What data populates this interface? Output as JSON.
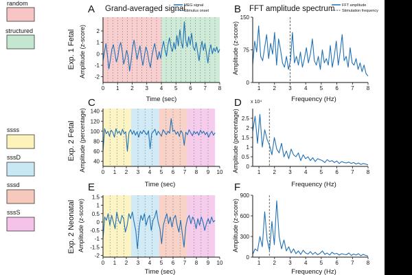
{
  "legend": {
    "items": [
      {
        "name": "random",
        "color": "#f7c5c6"
      },
      {
        "name": "structured",
        "color": "#c4e8cf"
      },
      {
        "name": "ssss",
        "color": "#fbf3b9"
      },
      {
        "name": "sssD",
        "color": "#c9e8f5"
      },
      {
        "name": "sssd",
        "color": "#f7c9bd"
      },
      {
        "name": "sssS",
        "color": "#f5c3ea"
      }
    ]
  },
  "column_titles": {
    "left": "Grand-averaged signal",
    "right": "FFT amplitude spectrum"
  },
  "line_color": "#1f6fb5",
  "chart_data": [
    {
      "panel": "A",
      "row_label": "Exp. 1 Fetal",
      "type": "line",
      "xlabel": "Time (sec)",
      "ylabel": "Amplitude (z-score)",
      "xlim": [
        0,
        8
      ],
      "ylim": [
        -2.5,
        3.2
      ],
      "x_ticks": [
        0,
        1,
        2,
        3,
        4,
        5,
        6,
        7,
        8
      ],
      "y_ticks": [
        -2,
        -1,
        0,
        1,
        2
      ],
      "y_tick_labels": [
        "-2",
        "-1",
        "0",
        "1",
        "2"
      ],
      "bands": [
        {
          "from": 0,
          "to": 4,
          "condition": "random"
        },
        {
          "from": 4,
          "to": 8,
          "condition": "structured"
        }
      ],
      "stimulus_onsets": [
        0.33,
        0.67,
        1.0,
        1.33,
        1.67,
        2.0,
        2.33,
        2.67,
        3.0,
        3.33,
        3.67,
        4.0,
        4.33,
        4.67,
        5.0,
        5.33,
        5.67,
        6.0,
        6.33,
        6.67,
        7.0,
        7.33,
        7.67
      ],
      "legend_entries": [
        "MEG signal",
        "Stimulus onset"
      ],
      "series": [
        {
          "name": "MEG signal",
          "x_range": [
            0,
            8
          ],
          "values": [
            -0.6,
            0.2,
            0.9,
            -0.2,
            -1.3,
            -0.5,
            0.4,
            0.8,
            0.1,
            -0.7,
            -0.3,
            0.6,
            1.0,
            0.2,
            -0.9,
            -0.4,
            0.3,
            -0.2,
            -1.5,
            -0.6,
            0.5,
            1.2,
            0.4,
            -0.5,
            0.1,
            0.7,
            -0.3,
            -1.0,
            -0.2,
            0.6,
            0.2,
            -0.6,
            -1.2,
            -0.3,
            0.4,
            0.9,
            0.1,
            -0.5,
            0.2,
            -0.4,
            0.5,
            1.1,
            0.3,
            -0.2,
            0.8,
            1.4,
            0.6,
            0.2,
            1.0,
            0.4,
            1.6,
            0.7,
            2.1,
            1.0,
            0.5,
            2.8,
            1.2,
            0.6,
            1.5,
            0.8,
            1.8,
            0.6,
            0.3,
            1.0,
            0.2,
            -0.6,
            0.4,
            1.1,
            0.3,
            0.9,
            0.1,
            -0.8,
            0.3,
            0.8,
            0.0,
            0.5,
            0.2,
            0.6,
            0.1,
            0.4
          ]
        }
      ]
    },
    {
      "panel": "B",
      "type": "line",
      "xlabel": "Frequency (Hz)",
      "ylabel": "Amplitude (z-score)",
      "xlim": [
        0.6,
        8
      ],
      "ylim": [
        0,
        150
      ],
      "x_ticks": [
        1,
        2,
        3,
        4,
        5,
        6,
        7,
        8
      ],
      "y_ticks": [
        0,
        75,
        150
      ],
      "y_tick_labels": [
        "0",
        "75",
        "150"
      ],
      "stimulation_frequency": 3.0,
      "legend_entries": [
        "FFT amplitude",
        "Stimulation frequency"
      ],
      "series": [
        {
          "name": "FFT amplitude",
          "x_range": [
            0.6,
            8
          ],
          "values": [
            40,
            95,
            70,
            130,
            60,
            50,
            80,
            110,
            55,
            90,
            65,
            115,
            40,
            100,
            75,
            45,
            35,
            60,
            30,
            50,
            115,
            45,
            60,
            40,
            70,
            35,
            55,
            80,
            45,
            65,
            100,
            50,
            40,
            60,
            30,
            75,
            45,
            55,
            40,
            85,
            35,
            60,
            95,
            40,
            70,
            110,
            50,
            60,
            35,
            80,
            45,
            40,
            55,
            30,
            45,
            25,
            40,
            20,
            15
          ]
        }
      ]
    },
    {
      "panel": "C",
      "row_label": "Exp. 2 Fetal",
      "type": "line",
      "xlabel": "Time (sec)",
      "ylabel": "Amplitude (percentage)",
      "xlim": [
        0,
        10
      ],
      "ylim": [
        30,
        145
      ],
      "x_ticks": [
        0,
        1,
        2,
        3,
        4,
        5,
        6,
        7,
        8,
        9,
        10
      ],
      "y_ticks": [
        40,
        60,
        80,
        100,
        120,
        140
      ],
      "y_tick_labels": [
        "40",
        "60",
        "80",
        "100",
        "120",
        "140"
      ],
      "bands": [
        {
          "from": 0,
          "to": 2.4,
          "condition": "ssss"
        },
        {
          "from": 2.4,
          "to": 4.8,
          "condition": "sssD"
        },
        {
          "from": 4.8,
          "to": 7.2,
          "condition": "sssd"
        },
        {
          "from": 7.2,
          "to": 9.6,
          "condition": "sssS"
        }
      ],
      "stimulus_onsets": [
        0.6,
        1.2,
        1.8,
        3.0,
        3.6,
        4.2,
        5.4,
        6.0,
        6.6,
        7.8,
        8.4,
        9.0
      ],
      "series": [
        {
          "name": "MEG signal",
          "x_range": [
            0,
            9.6
          ],
          "values": [
            60,
            105,
            95,
            100,
            90,
            102,
            98,
            88,
            105,
            96,
            100,
            92,
            104,
            95,
            99,
            60,
            97,
            103,
            94,
            101,
            92,
            99,
            88,
            100,
            95,
            102,
            97,
            93,
            101,
            65,
            96,
            99,
            104,
            92,
            100,
            95,
            90,
            103,
            98,
            93,
            100,
            96,
            125,
            100,
            102,
            94,
            99,
            90,
            101,
            96,
            72,
            98,
            93,
            103,
            97,
            91,
            100,
            95,
            99,
            92,
            102,
            96,
            100,
            93,
            98,
            88,
            95,
            100,
            92,
            97
          ]
        }
      ]
    },
    {
      "panel": "D",
      "type": "line",
      "xlabel": "Frequency (Hz)",
      "ylabel": "Amplitude (percentage)",
      "multiplier_label": "x 10⁴",
      "xlim": [
        0.6,
        8
      ],
      "ylim": [
        0,
        3
      ],
      "x_ticks": [
        1,
        2,
        3,
        4,
        5,
        6,
        7,
        8
      ],
      "y_ticks": [
        0,
        0.5,
        1,
        1.5,
        2,
        2.5
      ],
      "y_tick_labels": [
        "0",
        "0.5",
        "1",
        "1.5",
        "2",
        "2.5"
      ],
      "stimulation_frequency": 1.67,
      "series": [
        {
          "name": "FFT amplitude",
          "x_range": [
            0.6,
            8
          ],
          "values": [
            1.8,
            2.6,
            1.2,
            2.7,
            1.0,
            1.9,
            1.4,
            1.1,
            0.6,
            1.5,
            0.9,
            0.7,
            1.2,
            0.5,
            0.8,
            0.4,
            0.9,
            0.6,
            0.5,
            0.7,
            0.3,
            0.6,
            0.4,
            0.5,
            0.3,
            0.45,
            0.25,
            0.4,
            0.35,
            0.3,
            0.2,
            0.35,
            0.25,
            0.3,
            0.2,
            0.28,
            0.15,
            0.25,
            0.2,
            0.18,
            0.22,
            0.15,
            0.2,
            0.12,
            0.18,
            0.1,
            0.15,
            0.12,
            0.08
          ]
        }
      ]
    },
    {
      "panel": "E",
      "row_label": "Exp. 2 Neonatal",
      "type": "line",
      "xlabel": "Time (sec)",
      "ylabel": "Amplitude (z-score)",
      "xlim": [
        0,
        10
      ],
      "ylim": [
        -2.1,
        1.6
      ],
      "x_ticks": [
        0,
        1,
        2,
        3,
        4,
        5,
        6,
        7,
        8,
        9,
        10
      ],
      "y_ticks": [
        -2,
        -1.5,
        -1,
        -0.5,
        0,
        0.5,
        1,
        1.5
      ],
      "y_tick_labels": [
        "-2",
        "-1.5",
        "-1",
        "-0.5",
        "0",
        "0.5",
        "1",
        "1.5"
      ],
      "bands": [
        {
          "from": 0,
          "to": 2.4,
          "condition": "ssss"
        },
        {
          "from": 2.4,
          "to": 4.8,
          "condition": "sssD"
        },
        {
          "from": 4.8,
          "to": 7.2,
          "condition": "sssd"
        },
        {
          "from": 7.2,
          "to": 9.6,
          "condition": "sssS"
        }
      ],
      "stimulus_onsets": [
        0.6,
        1.2,
        1.8,
        3.0,
        3.6,
        4.2,
        5.4,
        6.0,
        6.6,
        7.8,
        8.4,
        9.0
      ],
      "series": [
        {
          "name": "MEG signal",
          "x_range": [
            0,
            9.6
          ],
          "values": [
            -1.0,
            0.3,
            0.1,
            0.5,
            -0.2,
            0.4,
            0.0,
            -0.4,
            0.6,
            0.1,
            -0.1,
            0.4,
            0.2,
            -0.6,
            -0.2,
            0.5,
            0.2,
            0.6,
            0.0,
            -0.5,
            -1.6,
            -0.3,
            0.4,
            0.1,
            0.5,
            -0.2,
            0.2,
            0.4,
            -0.5,
            0.1,
            0.3,
            0.7,
            0.0,
            -0.4,
            -1.3,
            -0.2,
            0.2,
            0.5,
            -0.1,
            0.3,
            -0.3,
            0.2,
            0.4,
            -0.2,
            -0.6,
            0.1,
            -0.7,
            -1.5,
            -0.3,
            0.2,
            0.4,
            -0.1,
            0.3,
            0.1,
            -0.4,
            0.2,
            -0.2,
            0.3,
            0.0,
            -0.5,
            -0.1,
            0.2,
            -0.1,
            0.3,
            0.0,
            0.1
          ]
        }
      ]
    },
    {
      "panel": "F",
      "type": "line",
      "xlabel": "Frequency (Hz)",
      "ylabel": "Amplitude (z-score)",
      "xlim": [
        0.6,
        8
      ],
      "ylim": [
        0,
        900
      ],
      "x_ticks": [
        1,
        2,
        3,
        4,
        5,
        6,
        7,
        8
      ],
      "y_ticks": [
        0,
        300,
        600,
        900
      ],
      "y_tick_labels": [
        "0",
        "300",
        "600",
        "900"
      ],
      "stimulation_frequency": 1.67,
      "series": [
        {
          "name": "FFT amplitude",
          "x_range": [
            0.6,
            8
          ],
          "values": [
            40,
            120,
            90,
            300,
            150,
            660,
            250,
            100,
            520,
            180,
            820,
            300,
            120,
            250,
            90,
            150,
            60,
            120,
            50,
            90,
            40,
            100,
            60,
            45,
            80,
            40,
            70,
            35,
            55,
            90,
            40,
            60,
            30,
            70,
            45,
            55,
            30,
            50,
            40,
            35,
            60,
            25,
            45,
            30,
            50,
            20,
            40,
            25,
            15
          ]
        }
      ]
    }
  ]
}
